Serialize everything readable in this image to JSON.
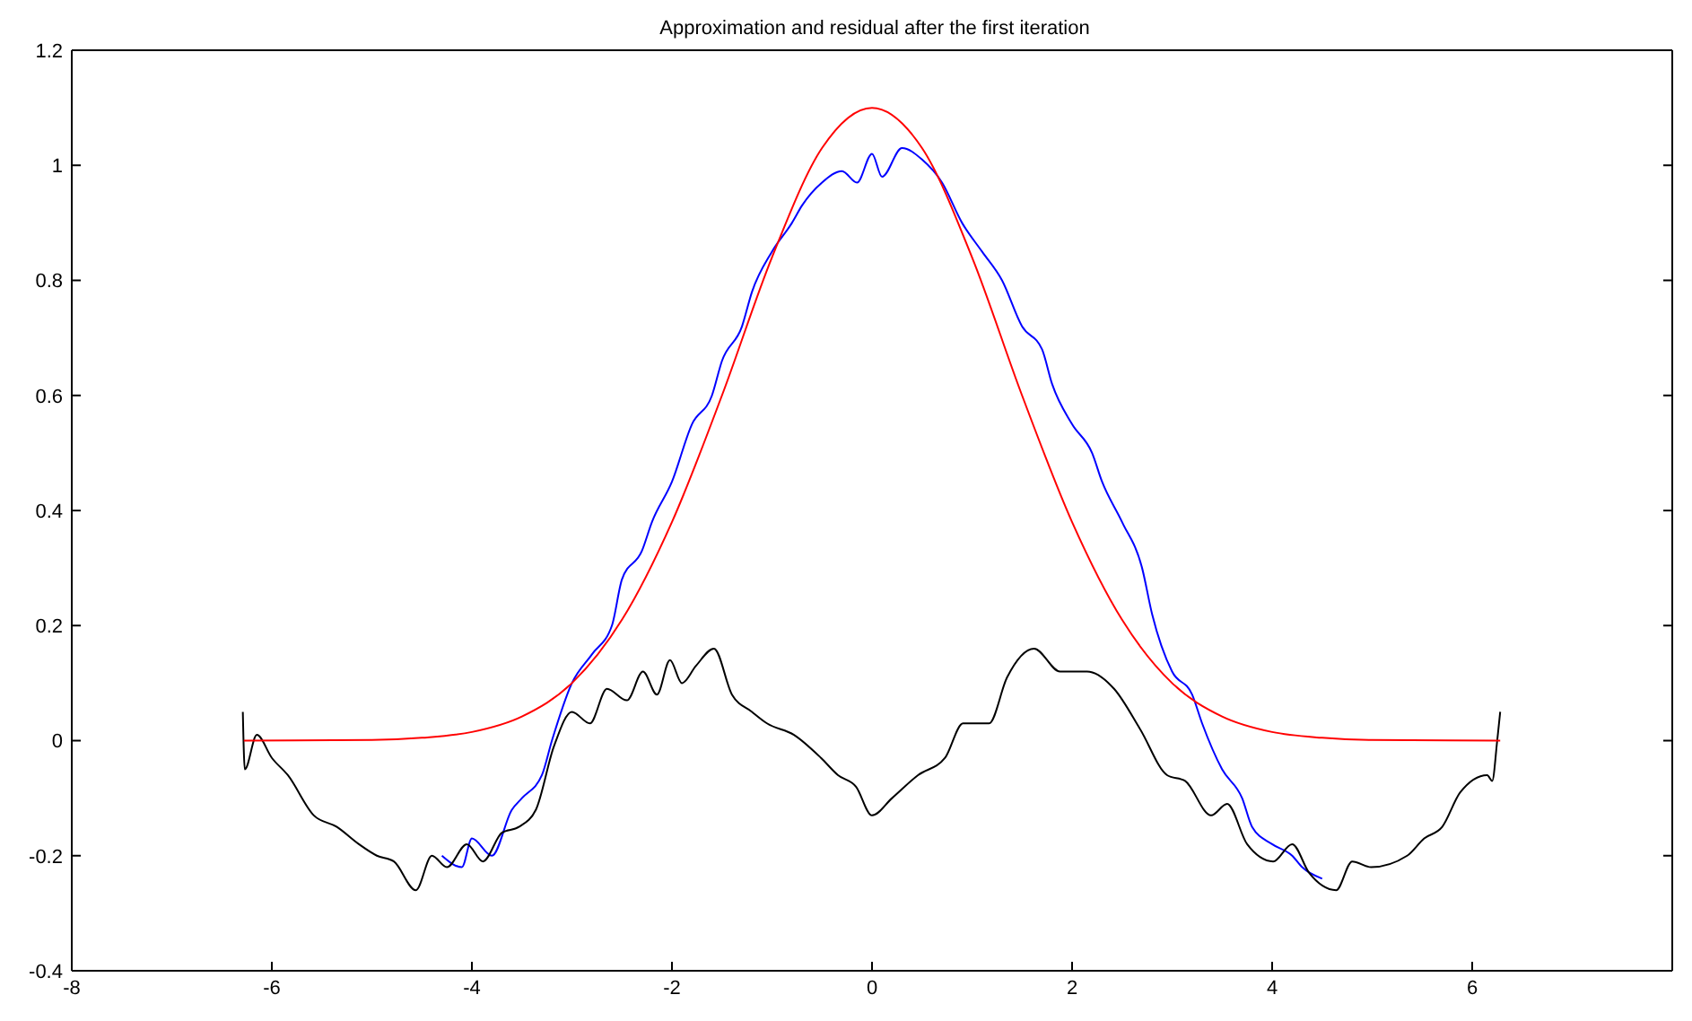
{
  "chart_data": {
    "type": "line",
    "title": "Approximation and residual after the first iteration",
    "xlim": [
      -8,
      8
    ],
    "xticks": [
      -8,
      -6,
      -4,
      -2,
      0,
      2,
      4,
      6
    ],
    "ylim": [
      -0.4,
      1.2
    ],
    "yticks": [
      -0.4,
      -0.2,
      0,
      0.2,
      0.4,
      0.6,
      0.8,
      1,
      1.2
    ],
    "marker": "none",
    "line_style": "solid",
    "series": [
      {
        "color": "#0000ff",
        "x": [
          -4.3,
          -4.1,
          -4.0,
          -3.8,
          -3.6,
          -3.5,
          -3.3,
          -3.2,
          -3.0,
          -2.8,
          -2.6,
          -2.5,
          -2.3,
          -2.2,
          -2.0,
          -1.8,
          -1.6,
          -1.5,
          -1.3,
          -1.2,
          -1.0,
          -0.8,
          -0.7,
          -0.5,
          -0.3,
          -0.15,
          0,
          0.1,
          0.3,
          0.5,
          0.7,
          0.9,
          1.1,
          1.3,
          1.5,
          1.7,
          1.8,
          2.0,
          2.2,
          2.3,
          2.5,
          2.7,
          2.8,
          3.0,
          3.2,
          3.3,
          3.5,
          3.7,
          3.8,
          4.0,
          4.2,
          4.3,
          4.5
        ],
        "values": [
          -0.2,
          -0.22,
          -0.17,
          -0.2,
          -0.12,
          -0.1,
          -0.06,
          0.0,
          0.1,
          0.15,
          0.2,
          0.28,
          0.33,
          0.38,
          0.45,
          0.55,
          0.6,
          0.66,
          0.72,
          0.78,
          0.85,
          0.9,
          0.93,
          0.97,
          0.99,
          0.97,
          1.02,
          0.98,
          1.03,
          1.01,
          0.97,
          0.9,
          0.85,
          0.8,
          0.72,
          0.68,
          0.62,
          0.55,
          0.5,
          0.45,
          0.38,
          0.3,
          0.22,
          0.12,
          0.08,
          0.03,
          -0.05,
          -0.1,
          -0.15,
          -0.18,
          -0.2,
          -0.22,
          -0.24
        ]
      },
      {
        "color": "#000000",
        "x": [
          -6.29,
          -6.27,
          -6.15,
          -6.0,
          -5.84,
          -5.58,
          -5.35,
          -5.13,
          -4.95,
          -4.78,
          -4.56,
          -4.4,
          -4.25,
          -4.05,
          -3.89,
          -3.7,
          -3.53,
          -3.36,
          -3.18,
          -3.0,
          -2.82,
          -2.65,
          -2.45,
          -2.29,
          -2.15,
          -2.02,
          -1.9,
          -1.76,
          -1.58,
          -1.4,
          -1.2,
          -1.05,
          -0.78,
          -0.51,
          -0.34,
          -0.16,
          0,
          0.2,
          0.46,
          0.73,
          0.91,
          1.17,
          1.35,
          1.62,
          1.88,
          2.15,
          2.42,
          2.68,
          2.95,
          3.13,
          3.39,
          3.55,
          3.75,
          4.01,
          4.2,
          4.37,
          4.64,
          4.8,
          4.99,
          5.35,
          5.52,
          5.7,
          5.88,
          6.15,
          6.2,
          6.25,
          6.28
        ],
        "values": [
          0.05,
          -0.05,
          0.01,
          -0.03,
          -0.06,
          -0.13,
          -0.15,
          -0.18,
          -0.2,
          -0.21,
          -0.26,
          -0.2,
          -0.22,
          -0.18,
          -0.21,
          -0.16,
          -0.15,
          -0.12,
          -0.01,
          0.05,
          0.03,
          0.09,
          0.07,
          0.12,
          0.08,
          0.14,
          0.1,
          0.13,
          0.16,
          0.08,
          0.05,
          0.03,
          0.01,
          -0.03,
          -0.06,
          -0.08,
          -0.13,
          -0.1,
          -0.06,
          -0.03,
          0.03,
          0.03,
          0.11,
          0.16,
          0.12,
          0.12,
          0.09,
          0.02,
          -0.06,
          -0.07,
          -0.13,
          -0.11,
          -0.18,
          -0.21,
          -0.18,
          -0.23,
          -0.26,
          -0.21,
          -0.22,
          -0.2,
          -0.17,
          -0.15,
          -0.09,
          -0.06,
          -0.07,
          0.0,
          0.05
        ]
      },
      {
        "color": "#ff0000",
        "x": [
          -6.28,
          -5,
          -4.5,
          -4,
          -3.5,
          -3,
          -2.5,
          -2,
          -1.5,
          -1,
          -0.5,
          0,
          0.5,
          1,
          1.5,
          2,
          2.5,
          3,
          3.5,
          4,
          4.5,
          5,
          6.28
        ],
        "values": [
          0,
          0.001,
          0.005,
          0.015,
          0.042,
          0.1,
          0.21,
          0.38,
          0.6,
          0.84,
          1.03,
          1.1,
          1.03,
          0.84,
          0.6,
          0.38,
          0.21,
          0.1,
          0.042,
          0.015,
          0.005,
          0.001,
          0
        ]
      }
    ]
  }
}
